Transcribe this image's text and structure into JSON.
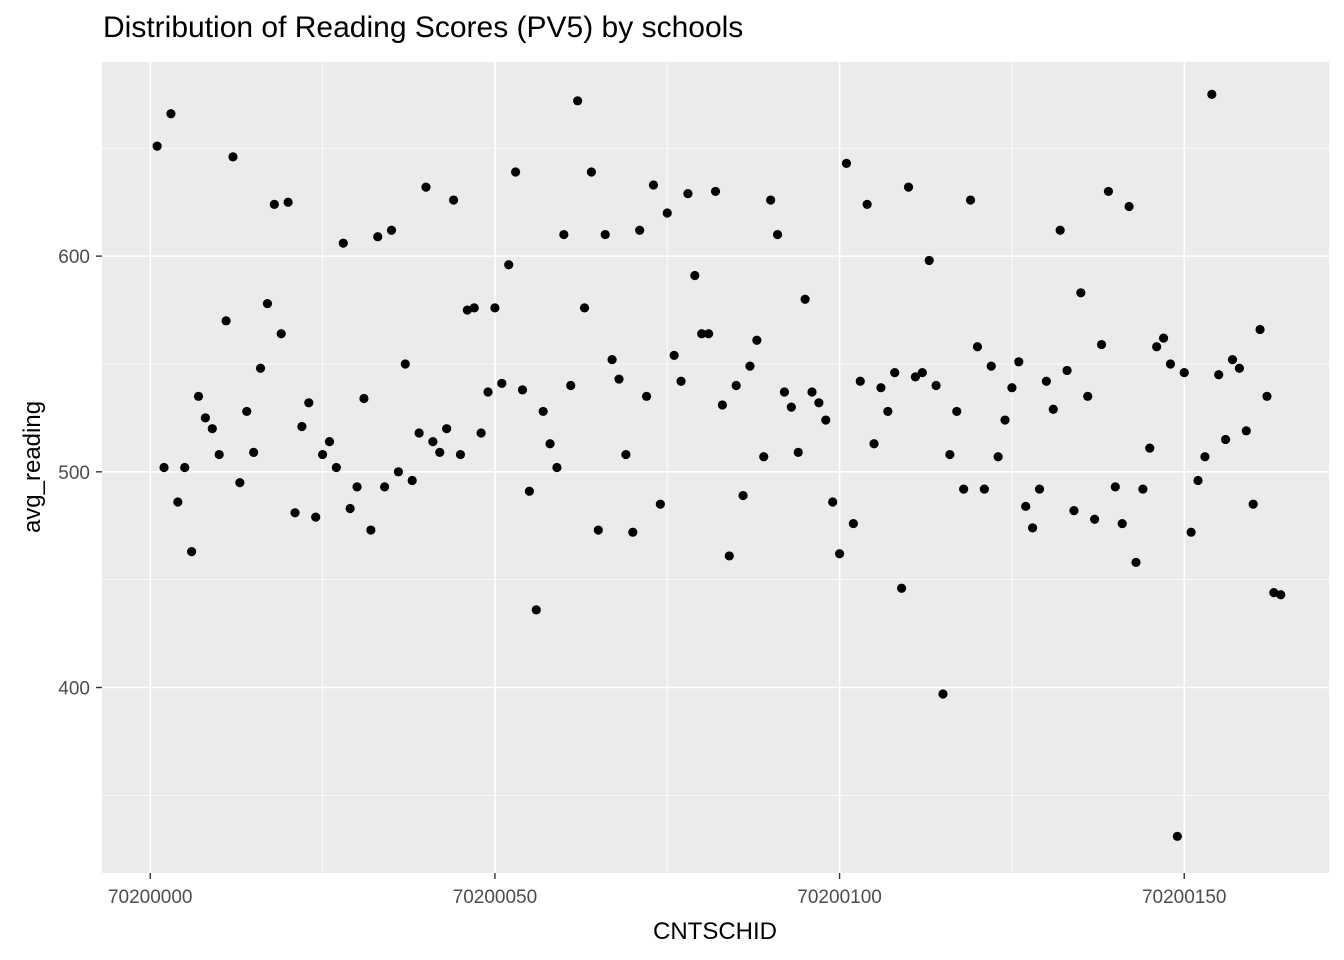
{
  "chart_data": {
    "type": "scatter",
    "title": "Distribution of Reading Scores (PV5) by schools",
    "xlabel": "CNTSCHID",
    "ylabel": "avg_reading",
    "xlim": [
      70199993,
      70200171
    ],
    "ylim": [
      314,
      690
    ],
    "x_major_ticks": [
      70200000,
      70200050,
      70200100,
      70200150
    ],
    "x_minor_ticks": [
      70200025,
      70200075,
      70200125
    ],
    "y_major_ticks": [
      400,
      500,
      600
    ],
    "y_minor_ticks": [
      350,
      450,
      550,
      650
    ],
    "x_tick_labels": [
      "70200000",
      "70200050",
      "70200100",
      "70200150"
    ],
    "y_tick_labels": [
      "400",
      "500",
      "600"
    ],
    "grid": true,
    "colors": {
      "panel": "#ebebeb",
      "grid": "#ffffff",
      "point": "#000000"
    },
    "points": [
      [
        70200001,
        651
      ],
      [
        70200002,
        502
      ],
      [
        70200003,
        666
      ],
      [
        70200004,
        486
      ],
      [
        70200005,
        502
      ],
      [
        70200006,
        463
      ],
      [
        70200007,
        535
      ],
      [
        70200008,
        525
      ],
      [
        70200009,
        520
      ],
      [
        70200010,
        508
      ],
      [
        70200011,
        570
      ],
      [
        70200012,
        646
      ],
      [
        70200013,
        495
      ],
      [
        70200014,
        528
      ],
      [
        70200015,
        509
      ],
      [
        70200016,
        548
      ],
      [
        70200017,
        578
      ],
      [
        70200018,
        624
      ],
      [
        70200019,
        564
      ],
      [
        70200020,
        625
      ],
      [
        70200021,
        481
      ],
      [
        70200022,
        521
      ],
      [
        70200023,
        532
      ],
      [
        70200024,
        479
      ],
      [
        70200025,
        508
      ],
      [
        70200026,
        514
      ],
      [
        70200027,
        502
      ],
      [
        70200028,
        606
      ],
      [
        70200029,
        483
      ],
      [
        70200030,
        493
      ],
      [
        70200031,
        534
      ],
      [
        70200032,
        473
      ],
      [
        70200033,
        609
      ],
      [
        70200034,
        493
      ],
      [
        70200035,
        612
      ],
      [
        70200036,
        500
      ],
      [
        70200037,
        550
      ],
      [
        70200038,
        496
      ],
      [
        70200039,
        518
      ],
      [
        70200040,
        632
      ],
      [
        70200041,
        514
      ],
      [
        70200042,
        509
      ],
      [
        70200043,
        520
      ],
      [
        70200044,
        626
      ],
      [
        70200045,
        508
      ],
      [
        70200046,
        575
      ],
      [
        70200047,
        576
      ],
      [
        70200048,
        518
      ],
      [
        70200049,
        537
      ],
      [
        70200050,
        576
      ],
      [
        70200051,
        541
      ],
      [
        70200052,
        596
      ],
      [
        70200053,
        639
      ],
      [
        70200054,
        538
      ],
      [
        70200055,
        491
      ],
      [
        70200056,
        436
      ],
      [
        70200057,
        528
      ],
      [
        70200058,
        513
      ],
      [
        70200059,
        502
      ],
      [
        70200060,
        610
      ],
      [
        70200061,
        540
      ],
      [
        70200062,
        672
      ],
      [
        70200063,
        576
      ],
      [
        70200064,
        639
      ],
      [
        70200065,
        473
      ],
      [
        70200066,
        610
      ],
      [
        70200067,
        552
      ],
      [
        70200068,
        543
      ],
      [
        70200069,
        508
      ],
      [
        70200070,
        472
      ],
      [
        70200071,
        612
      ],
      [
        70200072,
        535
      ],
      [
        70200073,
        633
      ],
      [
        70200074,
        485
      ],
      [
        70200075,
        620
      ],
      [
        70200076,
        554
      ],
      [
        70200077,
        542
      ],
      [
        70200078,
        629
      ],
      [
        70200079,
        591
      ],
      [
        70200080,
        564
      ],
      [
        70200081,
        564
      ],
      [
        70200082,
        630
      ],
      [
        70200083,
        531
      ],
      [
        70200084,
        461
      ],
      [
        70200085,
        540
      ],
      [
        70200086,
        489
      ],
      [
        70200087,
        549
      ],
      [
        70200088,
        561
      ],
      [
        70200089,
        507
      ],
      [
        70200090,
        626
      ],
      [
        70200091,
        610
      ],
      [
        70200092,
        537
      ],
      [
        70200093,
        530
      ],
      [
        70200094,
        509
      ],
      [
        70200095,
        580
      ],
      [
        70200096,
        537
      ],
      [
        70200097,
        532
      ],
      [
        70200098,
        524
      ],
      [
        70200099,
        486
      ],
      [
        70200100,
        462
      ],
      [
        70200101,
        643
      ],
      [
        70200102,
        476
      ],
      [
        70200103,
        542
      ],
      [
        70200104,
        624
      ],
      [
        70200105,
        513
      ],
      [
        70200106,
        539
      ],
      [
        70200107,
        528
      ],
      [
        70200108,
        546
      ],
      [
        70200109,
        446
      ],
      [
        70200110,
        632
      ],
      [
        70200111,
        544
      ],
      [
        70200112,
        546
      ],
      [
        70200113,
        598
      ],
      [
        70200114,
        540
      ],
      [
        70200115,
        397
      ],
      [
        70200116,
        508
      ],
      [
        70200117,
        528
      ],
      [
        70200118,
        492
      ],
      [
        70200119,
        626
      ],
      [
        70200120,
        558
      ],
      [
        70200121,
        492
      ],
      [
        70200122,
        549
      ],
      [
        70200123,
        507
      ],
      [
        70200124,
        524
      ],
      [
        70200125,
        539
      ],
      [
        70200126,
        551
      ],
      [
        70200127,
        484
      ],
      [
        70200128,
        474
      ],
      [
        70200129,
        492
      ],
      [
        70200130,
        542
      ],
      [
        70200131,
        529
      ],
      [
        70200132,
        612
      ],
      [
        70200133,
        547
      ],
      [
        70200134,
        482
      ],
      [
        70200135,
        583
      ],
      [
        70200136,
        535
      ],
      [
        70200137,
        478
      ],
      [
        70200138,
        559
      ],
      [
        70200139,
        630
      ],
      [
        70200140,
        493
      ],
      [
        70200141,
        476
      ],
      [
        70200142,
        623
      ],
      [
        70200143,
        458
      ],
      [
        70200144,
        492
      ],
      [
        70200145,
        511
      ],
      [
        70200146,
        558
      ],
      [
        70200147,
        562
      ],
      [
        70200148,
        550
      ],
      [
        70200149,
        331
      ],
      [
        70200150,
        546
      ],
      [
        70200151,
        472
      ],
      [
        70200152,
        496
      ],
      [
        70200153,
        507
      ],
      [
        70200154,
        675
      ],
      [
        70200155,
        545
      ],
      [
        70200156,
        515
      ],
      [
        70200157,
        552
      ],
      [
        70200158,
        548
      ],
      [
        70200159,
        519
      ],
      [
        70200160,
        485
      ],
      [
        70200161,
        566
      ],
      [
        70200162,
        535
      ],
      [
        70200163,
        444
      ],
      [
        70200164,
        443
      ]
    ]
  }
}
